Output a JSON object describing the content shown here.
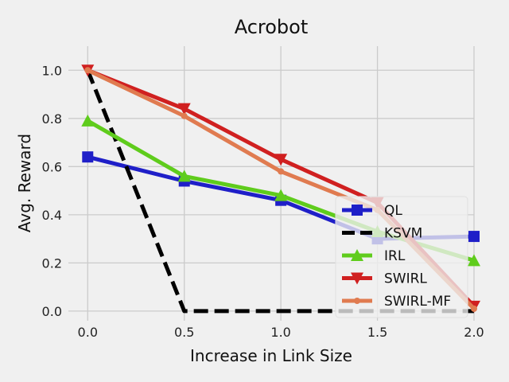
{
  "chart_data": {
    "type": "line",
    "title": "Acrobot",
    "xlabel": "Increase in Link Size",
    "ylabel": "Avg. Reward",
    "x": [
      0.0,
      0.5,
      1.0,
      1.5,
      2.0
    ],
    "xticks": [
      "0.0",
      "0.5",
      "1.0",
      "1.5",
      "2.0"
    ],
    "yticks": [
      "0.0",
      "0.2",
      "0.4",
      "0.6",
      "0.8",
      "1.0"
    ],
    "xlim": [
      -0.1,
      2.0
    ],
    "ylim": [
      -0.04,
      1.1
    ],
    "grid": true,
    "legend_position": "lower-right",
    "series": [
      {
        "name": "QL",
        "values": [
          0.64,
          0.54,
          0.46,
          0.3,
          0.31
        ],
        "color": "#1f1fc8",
        "dash": "solid",
        "marker": "square"
      },
      {
        "name": "KSVM",
        "values": [
          1.0,
          0.0,
          0.0,
          0.0,
          0.0
        ],
        "color": "#000000",
        "dash": "dashed",
        "marker": "none"
      },
      {
        "name": "IRL",
        "values": [
          0.79,
          0.56,
          0.48,
          0.33,
          0.21
        ],
        "color": "#5fcc1c",
        "dash": "solid",
        "marker": "triangle-up"
      },
      {
        "name": "SWIRL",
        "values": [
          1.0,
          0.84,
          0.63,
          0.45,
          0.02
        ],
        "color": "#d02020",
        "dash": "solid",
        "marker": "triangle-down"
      },
      {
        "name": "SWIRL-MF",
        "values": [
          1.0,
          0.81,
          0.58,
          0.42,
          0.01
        ],
        "color": "#e07b50",
        "dash": "solid",
        "marker": "circle"
      }
    ]
  }
}
